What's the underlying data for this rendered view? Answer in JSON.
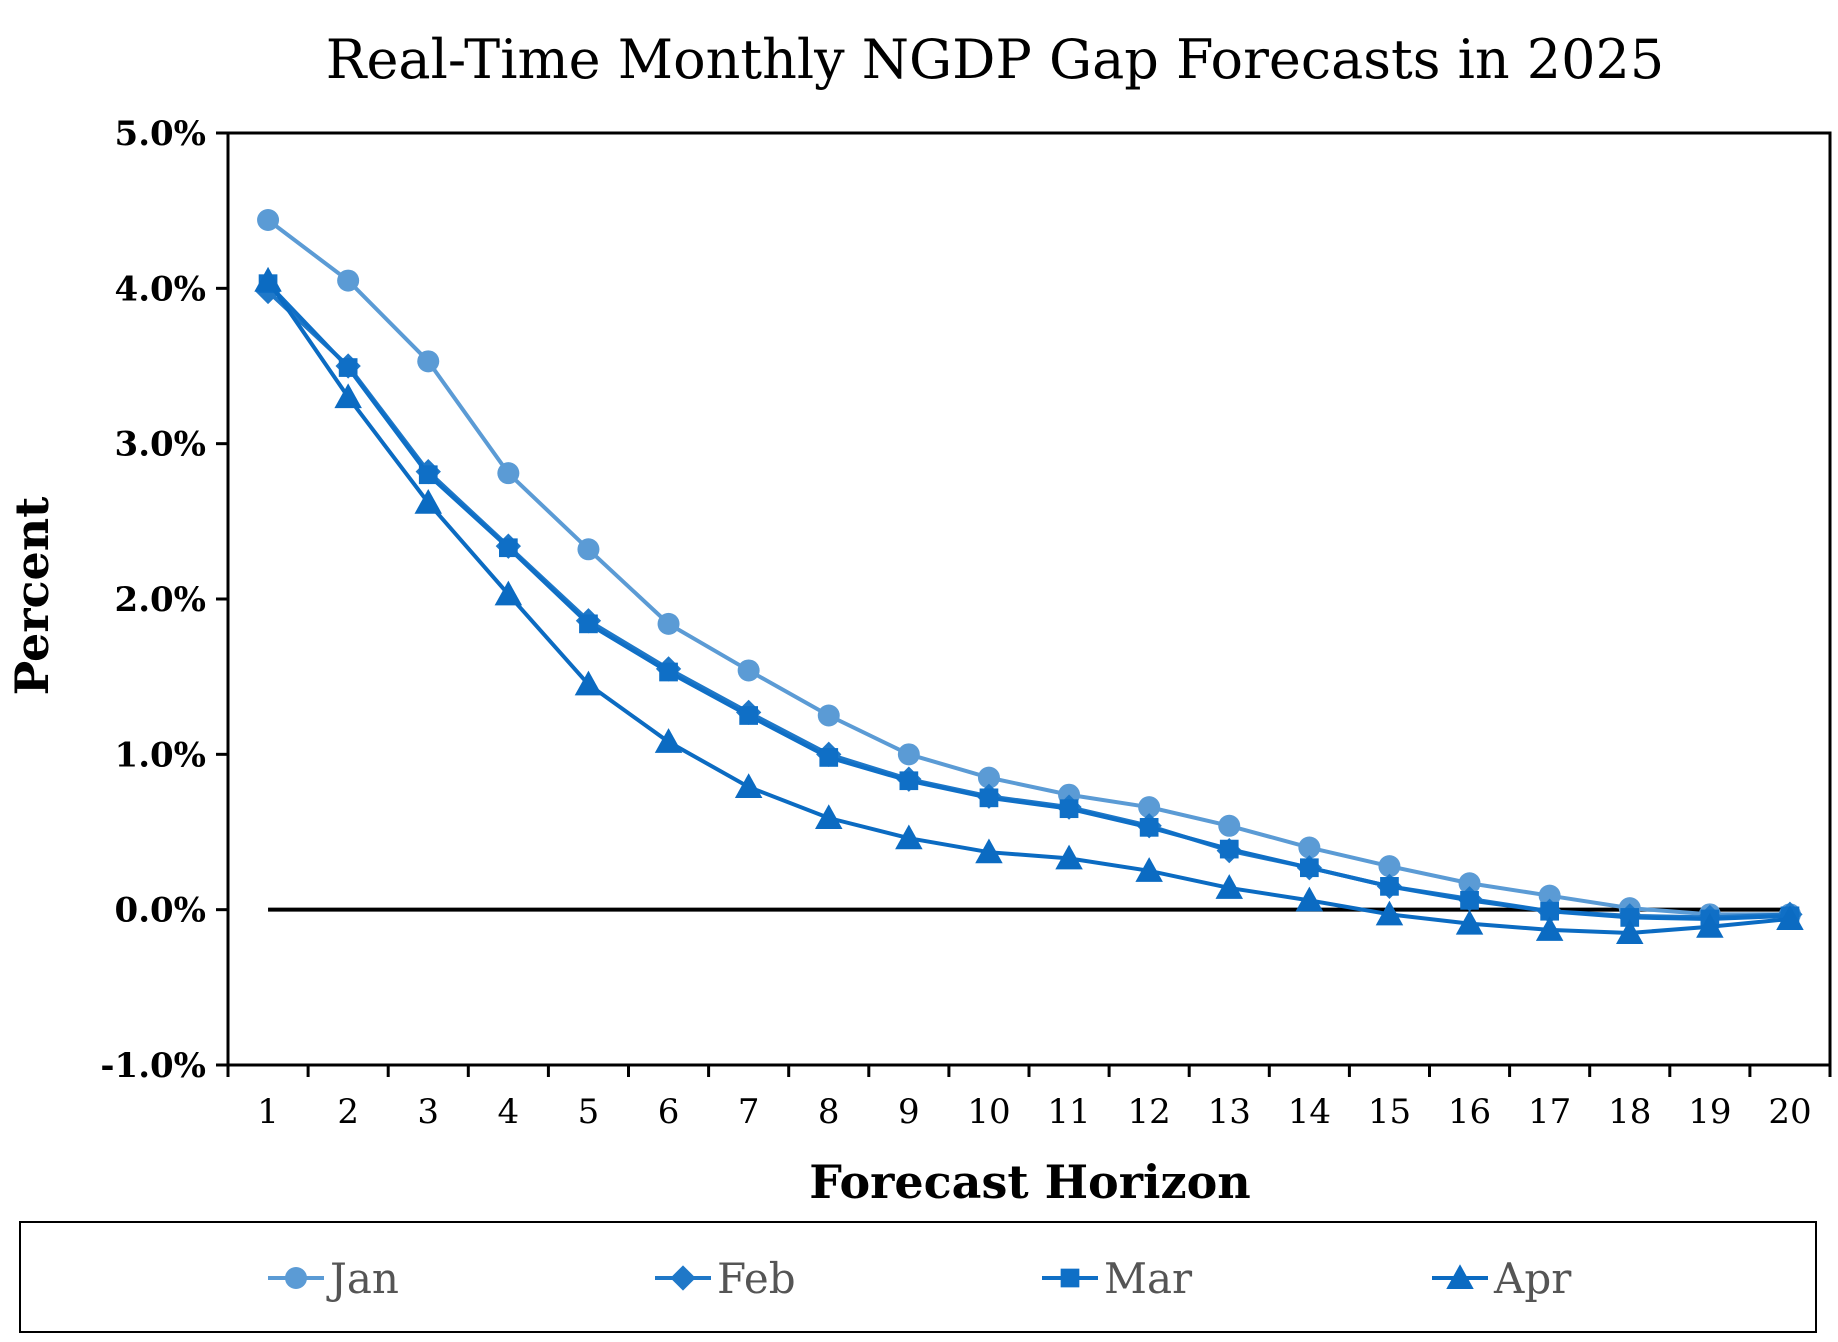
{
  "chart_data": {
    "type": "line",
    "title": "Real-Time Monthly NGDP Gap Forecasts in 2025",
    "xlabel": "Forecast Horizon",
    "ylabel": "Percent",
    "x": [
      1,
      2,
      3,
      4,
      5,
      6,
      7,
      8,
      9,
      10,
      11,
      12,
      13,
      14,
      15,
      16,
      17,
      18,
      19,
      20
    ],
    "ylim": [
      -1.0,
      5.0
    ],
    "yticks": [
      -1.0,
      0.0,
      1.0,
      2.0,
      3.0,
      4.0,
      5.0
    ],
    "ytick_labels": [
      "-1.0%",
      "0.0%",
      "1.0%",
      "2.0%",
      "3.0%",
      "4.0%",
      "5.0%"
    ],
    "grid": false,
    "legend_position": "bottom",
    "zero_line": true,
    "series": [
      {
        "name": "Jan",
        "color": "#5b9bd5",
        "marker": "circle",
        "values": [
          4.44,
          4.05,
          3.53,
          2.81,
          2.32,
          1.84,
          1.54,
          1.25,
          1.0,
          0.85,
          0.74,
          0.66,
          0.54,
          0.4,
          0.28,
          0.17,
          0.09,
          0.01,
          -0.03,
          -0.03
        ]
      },
      {
        "name": "Feb",
        "color": "#1f78c8",
        "marker": "diamond",
        "values": [
          3.98,
          3.5,
          2.82,
          2.34,
          1.86,
          1.55,
          1.27,
          1.0,
          0.84,
          0.73,
          0.66,
          0.54,
          0.38,
          0.27,
          0.15,
          0.07,
          -0.01,
          -0.04,
          -0.05,
          -0.03
        ]
      },
      {
        "name": "Mar",
        "color": "#0f6fc6",
        "marker": "square",
        "values": [
          4.03,
          3.49,
          2.8,
          2.33,
          1.84,
          1.53,
          1.25,
          0.98,
          0.83,
          0.72,
          0.65,
          0.53,
          0.39,
          0.27,
          0.15,
          0.06,
          -0.01,
          -0.05,
          -0.06,
          -0.04
        ]
      },
      {
        "name": "Apr",
        "color": "#0b6bc2",
        "marker": "triangle",
        "values": [
          4.05,
          3.3,
          2.62,
          2.03,
          1.45,
          1.08,
          0.79,
          0.59,
          0.46,
          0.37,
          0.33,
          0.25,
          0.14,
          0.06,
          -0.03,
          -0.09,
          -0.13,
          -0.15,
          -0.11,
          -0.06
        ]
      }
    ]
  }
}
